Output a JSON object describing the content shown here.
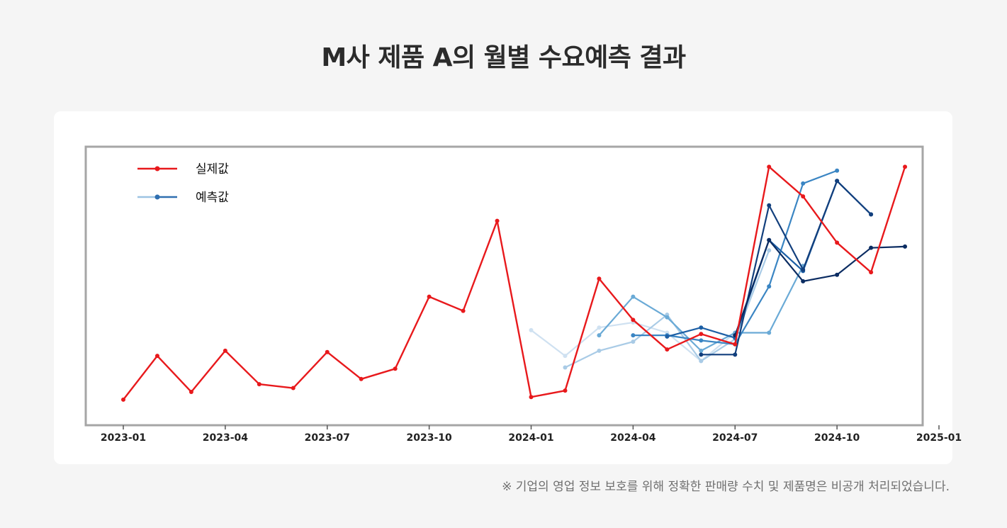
{
  "title": "M사 제품 A의 월별 수요예측 결과",
  "footnote": "※ 기업의 영업 정보 보호를 위해 정확한 판매량 수치 및 제품명은 비공개 처리되었습니다.",
  "chart_data": {
    "type": "line",
    "title": "M사 제품 A의 월별 수요예측 결과",
    "xlabel": "",
    "ylabel": "",
    "y_axis_labels_shown": false,
    "grid": false,
    "legend": {
      "placement": "top-left",
      "entries": [
        {
          "label": "실제값",
          "color": "#e8191c"
        },
        {
          "label": "예측값",
          "color": "#2f6fb0"
        }
      ]
    },
    "x_ticks": [
      "2023-01",
      "2023-04",
      "2023-07",
      "2023-10",
      "2024-01",
      "2024-04",
      "2024-07",
      "2024-10",
      "2025-01"
    ],
    "xlim": [
      "2022-12",
      "2025-01"
    ],
    "ylim": [
      0,
      100
    ],
    "series": [
      {
        "name": "실제값",
        "color": "#e8191c",
        "points": [
          [
            "2023-01",
            5
          ],
          [
            "2023-02",
            22
          ],
          [
            "2023-03",
            8
          ],
          [
            "2023-04",
            24
          ],
          [
            "2023-05",
            11
          ],
          [
            "2023-06",
            9.5
          ],
          [
            "2023-07",
            23.5
          ],
          [
            "2023-08",
            13
          ],
          [
            "2023-09",
            17
          ],
          [
            "2023-10",
            45
          ],
          [
            "2023-11",
            39.5
          ],
          [
            "2023-12",
            74.5
          ],
          [
            "2024-01",
            6
          ],
          [
            "2024-02",
            8.5
          ],
          [
            "2024-03",
            52
          ],
          [
            "2024-04",
            36
          ],
          [
            "2024-05",
            24.5
          ],
          [
            "2024-06",
            30.5
          ],
          [
            "2024-07",
            26.5
          ],
          [
            "2024-08",
            95.5
          ],
          [
            "2024-09",
            84
          ],
          [
            "2024-10",
            66
          ],
          [
            "2024-11",
            54.5
          ],
          [
            "2024-12",
            95.5
          ]
        ]
      },
      {
        "color": "#cfe1f1",
        "points": [
          [
            "2024-01",
            32
          ],
          [
            "2024-02",
            22
          ],
          [
            "2024-03",
            33
          ],
          [
            "2024-04",
            35
          ],
          [
            "2024-05",
            31
          ],
          [
            "2024-06",
            20
          ],
          [
            "2024-07",
            31
          ]
        ]
      },
      {
        "color": "#a9cbe6",
        "points": [
          [
            "2024-02",
            17.5
          ],
          [
            "2024-03",
            24
          ],
          [
            "2024-04",
            27.5
          ],
          [
            "2024-05",
            38
          ],
          [
            "2024-06",
            20
          ],
          [
            "2024-07",
            28.5
          ],
          [
            "2024-08",
            63
          ]
        ]
      },
      {
        "color": "#6aaad6",
        "points": [
          [
            "2024-03",
            30
          ],
          [
            "2024-04",
            45
          ],
          [
            "2024-05",
            37
          ],
          [
            "2024-06",
            24
          ],
          [
            "2024-07",
            31
          ],
          [
            "2024-08",
            31
          ],
          [
            "2024-09",
            57
          ]
        ]
      },
      {
        "color": "#3a85c3",
        "points": [
          [
            "2024-04",
            30
          ],
          [
            "2024-05",
            30
          ],
          [
            "2024-06",
            28
          ],
          [
            "2024-07",
            26.5
          ],
          [
            "2024-08",
            49
          ],
          [
            "2024-09",
            89
          ],
          [
            "2024-10",
            94
          ]
        ]
      },
      {
        "color": "#1c5fa5",
        "points": [
          [
            "2024-05",
            29.5
          ],
          [
            "2024-06",
            33
          ],
          [
            "2024-07",
            29
          ],
          [
            "2024-08",
            67
          ],
          [
            "2024-09",
            55
          ],
          [
            "2024-10",
            90
          ],
          [
            "2024-11",
            77
          ]
        ]
      },
      {
        "color": "#123f7d",
        "points": [
          [
            "2024-06",
            22.5
          ],
          [
            "2024-07",
            22.5
          ],
          [
            "2024-08",
            80.5
          ],
          [
            "2024-09",
            55.5
          ],
          [
            "2024-10",
            90
          ],
          [
            "2024-11",
            77
          ]
        ]
      },
      {
        "color": "#0b2c62",
        "points": [
          [
            "2024-07",
            30
          ],
          [
            "2024-08",
            67
          ],
          [
            "2024-09",
            51
          ],
          [
            "2024-10",
            53.5
          ],
          [
            "2024-11",
            64
          ],
          [
            "2024-12",
            64.5
          ]
        ]
      }
    ]
  }
}
